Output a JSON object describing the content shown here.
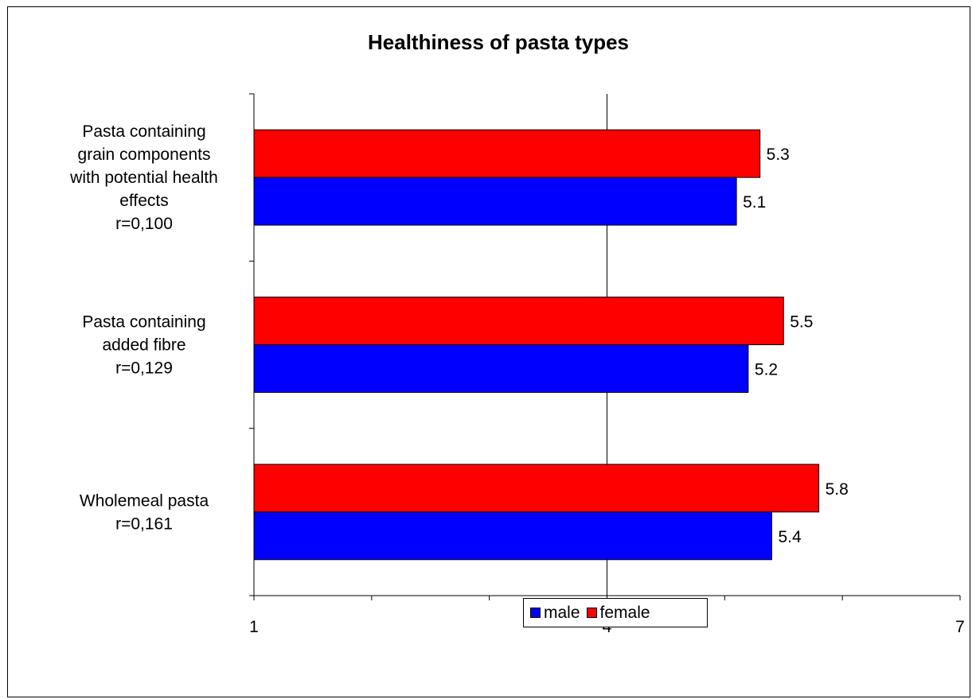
{
  "chart_data": {
    "type": "bar",
    "orientation": "horizontal",
    "title": "Healthiness of pasta types",
    "categories": [
      "Pasta containing grain components with potential health effects r=0,100",
      "Pasta containing added fibre r=0,129",
      "Wholemeal pasta r=0,161"
    ],
    "category_lines": [
      [
        "Pasta containing",
        "grain components",
        "with potential health",
        "effects",
        "r=0,100"
      ],
      [
        "Pasta containing",
        "added fibre",
        "r=0,129"
      ],
      [
        "Wholemeal pasta",
        "r=0,161"
      ]
    ],
    "series": [
      {
        "name": "female",
        "color": "#ff0000",
        "values": [
          5.3,
          5.5,
          5.8
        ],
        "labels": [
          "5.3",
          "5.5",
          "5.8"
        ]
      },
      {
        "name": "male",
        "color": "#0000ff",
        "values": [
          5.1,
          5.2,
          5.4
        ],
        "labels": [
          "5.1",
          "5.2",
          "5.4"
        ]
      }
    ],
    "xlim": [
      1,
      7
    ],
    "xticks": [
      1,
      4,
      7
    ],
    "xtick_labels": [
      "1",
      "4",
      "7"
    ],
    "gridlines": "major vertical at 4",
    "legend_position": "bottom"
  },
  "legend": {
    "items": [
      {
        "label": "male",
        "color": "#0000ff"
      },
      {
        "label": "female",
        "color": "#ff0000"
      }
    ]
  }
}
